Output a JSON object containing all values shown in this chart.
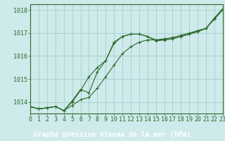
{
  "title": "Graphe pression niveau de la mer (hPa)",
  "hours": [
    0,
    1,
    2,
    3,
    4,
    5,
    6,
    7,
    8,
    9,
    10,
    11,
    12,
    13,
    14,
    15,
    16,
    17,
    18,
    19,
    20,
    21,
    22,
    23
  ],
  "line1": [
    1013.8,
    1013.7,
    1013.75,
    1013.8,
    1013.63,
    1013.85,
    1014.1,
    1014.2,
    1014.6,
    1015.1,
    1015.6,
    1016.1,
    1016.4,
    1016.6,
    1016.7,
    1016.7,
    1016.75,
    1016.8,
    1016.9,
    1017.0,
    1017.1,
    1017.2,
    1017.6,
    1018.0
  ],
  "line2": [
    1013.8,
    1013.7,
    1013.75,
    1013.8,
    1013.63,
    1014.0,
    1014.5,
    1015.1,
    1015.5,
    1015.8,
    1016.55,
    1016.85,
    1016.95,
    1016.95,
    1016.85,
    1016.7,
    1016.7,
    1016.75,
    1016.85,
    1016.95,
    1017.1,
    1017.2,
    1017.65,
    1018.05
  ],
  "line3": [
    1013.8,
    1013.7,
    1013.75,
    1013.8,
    1013.63,
    1014.05,
    1014.55,
    1014.4,
    1015.3,
    1015.8,
    1016.6,
    1016.85,
    1016.95,
    1016.95,
    1016.85,
    1016.65,
    1016.7,
    1016.75,
    1016.85,
    1016.95,
    1017.05,
    1017.2,
    1017.65,
    1018.05
  ],
  "ylim": [
    1013.5,
    1018.25
  ],
  "yticks": [
    1014,
    1015,
    1016,
    1017,
    1018
  ],
  "xlim": [
    0,
    23
  ],
  "line_color": "#2d6a2d",
  "bg_color": "#ceeaea",
  "grid_color": "#9ec8c8",
  "title_bg": "#2d6a2d",
  "title_fg": "#ffffff",
  "title_fontsize": 7.0,
  "tick_fontsize": 6.0
}
